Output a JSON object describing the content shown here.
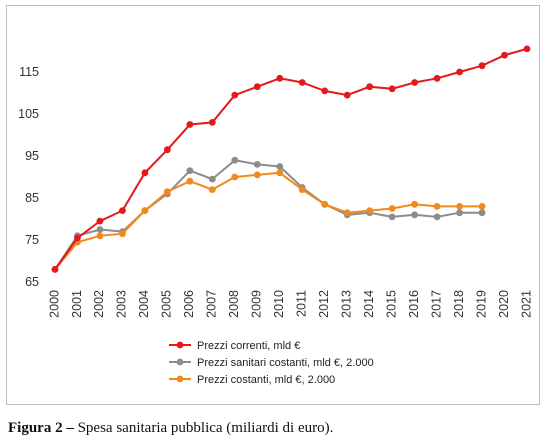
{
  "caption": {
    "label": "Figura 2 –",
    "text": "Spesa sanitaria pubblica (miliardi di euro)."
  },
  "chart_data": {
    "type": "line",
    "title": "",
    "xlabel": "",
    "ylabel": "",
    "ylim": [
      65,
      125
    ],
    "yticks": [
      65,
      75,
      85,
      95,
      105,
      115
    ],
    "categories": [
      "2000",
      "2001",
      "2002",
      "2003",
      "2004",
      "2005",
      "2006",
      "2007",
      "2008",
      "2009",
      "2010",
      "2011",
      "2012",
      "2013",
      "2014",
      "2015",
      "2016",
      "2017",
      "2018",
      "2019",
      "2020",
      "2021"
    ],
    "grid": false,
    "legend_position": "bottom",
    "series": [
      {
        "name": "Prezzi correnti, mld €",
        "color": "#e3191c",
        "values": [
          68,
          75.5,
          79.5,
          82,
          91,
          96.5,
          102.5,
          103,
          109.5,
          111.5,
          113.5,
          112.5,
          110.5,
          109.5,
          111.5,
          111,
          112.5,
          113.5,
          115,
          116.5,
          119,
          120.5
        ]
      },
      {
        "name": "Prezzi sanitari costanti, mld €, 2.000",
        "color": "#8c8c8c",
        "values": [
          68,
          76,
          77.5,
          77,
          82,
          86,
          91.5,
          89.5,
          94,
          93,
          92.5,
          87.5,
          83.5,
          81,
          81.5,
          80.5,
          81,
          80.5,
          81.5,
          81.5,
          null,
          null
        ]
      },
      {
        "name": "Prezzi costanti, mld €, 2.000",
        "color": "#f08a1c",
        "values": [
          68,
          74.5,
          76,
          76.5,
          82,
          86.5,
          89,
          87,
          90,
          90.5,
          91,
          87,
          83.5,
          81.5,
          82,
          82.5,
          83.5,
          83,
          83,
          83,
          null,
          null
        ]
      }
    ]
  }
}
